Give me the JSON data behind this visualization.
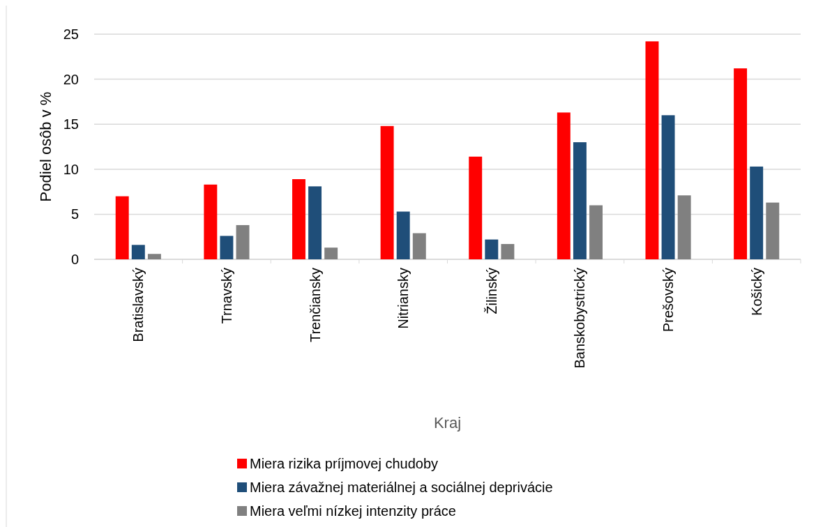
{
  "chart_data": {
    "type": "bar",
    "xlabel": "Kraj",
    "ylabel": "Podiel osôb v %",
    "categories": [
      "Bratislavský",
      "Trnavský",
      "Trenčiansky",
      "Nitriansky",
      "Žilinský",
      "Banskobystrický",
      "Prešovský",
      "Košický"
    ],
    "series": [
      {
        "name": "Miera rizika príjmovej chudoby",
        "color": "#ff0000",
        "values": [
          7.0,
          8.3,
          8.9,
          14.8,
          11.4,
          16.3,
          24.2,
          21.2
        ]
      },
      {
        "name": "Miera závažnej materiálnej a sociálnej deprivácie",
        "color": "#1f4e79",
        "values": [
          1.6,
          2.6,
          8.1,
          5.3,
          2.2,
          13.0,
          16.0,
          10.3
        ]
      },
      {
        "name": "Miera veľmi nízkej intenzity práce",
        "color": "#808080",
        "values": [
          0.6,
          3.8,
          1.3,
          2.9,
          1.7,
          6.0,
          7.1,
          6.3
        ]
      }
    ],
    "ylim": [
      0,
      25
    ],
    "yticks": [
      0,
      5,
      10,
      15,
      20,
      25
    ],
    "grid": "y",
    "legend": "bottom"
  }
}
